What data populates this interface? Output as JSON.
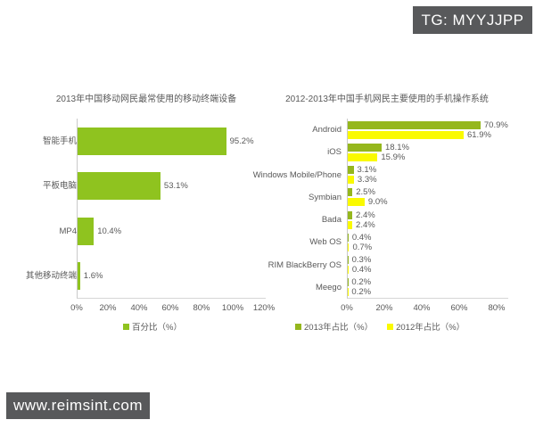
{
  "watermarks": {
    "top_right": "TG: MYYJJPP",
    "bottom_left": "www.reimsint.com"
  },
  "colors": {
    "bar_green": "#8FC31F",
    "bar_green_2013": "#95B71D",
    "bar_yellow_2012": "#FAFA00",
    "text_gray": "#595959",
    "badge_bg": "#58595B",
    "axis_line": "#C9C9C9"
  },
  "chart_data": [
    {
      "type": "bar",
      "orientation": "horizontal",
      "title": "2013年中国移动网民最常使用的移动终端设备",
      "categories": [
        "智能手机",
        "平板电脑",
        "MP4",
        "其他移动终端"
      ],
      "values": [
        95.2,
        53.1,
        10.4,
        1.6
      ],
      "value_labels": [
        "95.2%",
        "53.1%",
        "10.4%",
        "1.6%"
      ],
      "bar_color": "#8FC31F",
      "xlim": [
        0,
        120
      ],
      "x_ticks": [
        "0%",
        "20%",
        "40%",
        "60%",
        "80%",
        "100%",
        "120%"
      ],
      "grid": false,
      "legend_position": "bottom",
      "legend": [
        {
          "label": "百分比（%）",
          "color": "#8FC31F"
        }
      ]
    },
    {
      "type": "bar",
      "orientation": "horizontal",
      "title": "2012-2013年中国手机网民主要使用的手机操作系统",
      "categories": [
        "Android",
        "iOS",
        "Windows Mobile/Phone",
        "Symbian",
        "Bada",
        "Web OS",
        "RIM BlackBerry OS",
        "Meego"
      ],
      "series": [
        {
          "name": "2013年占比（%）",
          "color": "#95B71D",
          "values": [
            70.9,
            18.1,
            3.1,
            2.5,
            2.4,
            0.4,
            0.3,
            0.2
          ],
          "value_labels": [
            "70.9%",
            "18.1%",
            "3.1%",
            "2.5%",
            "2.4%",
            "0.4%",
            "0.3%",
            "0.2%"
          ]
        },
        {
          "name": "2012年占比（%）",
          "color": "#FAFA00",
          "values": [
            61.9,
            15.9,
            3.3,
            9.0,
            2.4,
            0.7,
            0.4,
            0.2
          ],
          "value_labels": [
            "61.9%",
            "15.9%",
            "3.3%",
            "9.0%",
            "2.4%",
            "0.7%",
            "0.4%",
            "0.2%"
          ]
        }
      ],
      "xlim": [
        0,
        80
      ],
      "x_ticks": [
        "0%",
        "20%",
        "40%",
        "60%",
        "80%"
      ],
      "grid": false,
      "legend_position": "bottom",
      "legend": [
        {
          "label": "2013年占比（%）",
          "color": "#95B71D"
        },
        {
          "label": "2012年占比（%）",
          "color": "#FAFA00"
        }
      ]
    }
  ]
}
